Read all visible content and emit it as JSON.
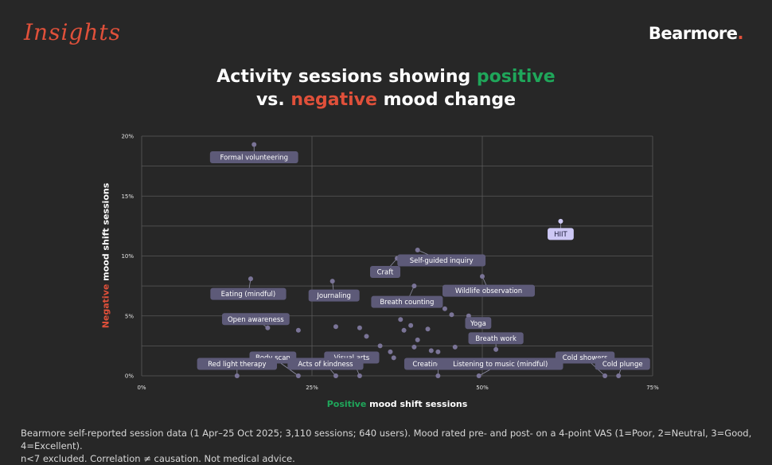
{
  "header": {
    "script_logo": "Insights",
    "brand": "Bearmore",
    "brand_dot": "."
  },
  "title": {
    "line1_prefix": "Activity sessions showing ",
    "positive_word": "positive",
    "line2_prefix": "vs. ",
    "negative_word": "negative",
    "line2_suffix": " mood change"
  },
  "axes": {
    "x_positive_word": "Positive",
    "x_suffix": " mood shift sessions",
    "y_negative_word": "Negative",
    "y_suffix": " mood shift sessions"
  },
  "footnote": {
    "line1": "Bearmore self-reported session data (1 Apr–25 Oct 2025; 3,110 sessions; 640 users). Mood rated pre- and post- on a 4-point VAS (1=Poor, 2=Neutral, 3=Good, 4=Excellent).",
    "line2": "n<7 excluded. Correlation ≠ causation. Not medical advice."
  },
  "colors": {
    "background": "#272727",
    "positive": "#1fa65a",
    "negative": "#e0503a",
    "point": "#7a7497",
    "label_bg": "#5d5a78",
    "highlight_label_bg": "#cdc8f5",
    "highlight_point": "#cdc8f5",
    "grid": "#5a5a5a"
  },
  "chart_data": {
    "type": "scatter",
    "xlim": [
      0,
      75
    ],
    "ylim": [
      0,
      20
    ],
    "x_ticks": [
      "0%",
      "25%",
      "50%",
      "75%"
    ],
    "y_ticks": [
      "0%",
      "5%",
      "10%",
      "15%",
      "20%"
    ],
    "grid": true,
    "labeled_points": [
      {
        "label": "Formal volunteering",
        "x": 16.5,
        "y": 19.3
      },
      {
        "label": "HIIT",
        "x": 61.5,
        "y": 12.9,
        "highlight": true
      },
      {
        "label": "Self-guided inquiry",
        "x": 40.5,
        "y": 10.5
      },
      {
        "label": "Craft",
        "x": 37.5,
        "y": 9.8
      },
      {
        "label": "Wildlife observation",
        "x": 50,
        "y": 8.3
      },
      {
        "label": "Eating (mindful)",
        "x": 16,
        "y": 8.1
      },
      {
        "label": "Journaling",
        "x": 28,
        "y": 7.9
      },
      {
        "label": "Breath counting",
        "x": 40,
        "y": 7.5
      },
      {
        "label": "Yoga",
        "x": 48,
        "y": 5
      },
      {
        "label": "Open awareness",
        "x": 18.5,
        "y": 4
      },
      {
        "label": "Breath work",
        "x": 52,
        "y": 2.2
      },
      {
        "label": "Body scan",
        "x": 23,
        "y": 0
      },
      {
        "label": "Visual arts",
        "x": 32,
        "y": 0
      },
      {
        "label": "Cold showers",
        "x": 68,
        "y": 0
      },
      {
        "label": "Red light therapy",
        "x": 14,
        "y": 0
      },
      {
        "label": "Acts of kindness",
        "x": 28.5,
        "y": 0
      },
      {
        "label": "Creating music",
        "x": 43.5,
        "y": 0
      },
      {
        "label": "Listening to music (mindful)",
        "x": 49.5,
        "y": 0
      },
      {
        "label": "Cold plunge",
        "x": 70,
        "y": 0
      }
    ],
    "unlabeled_points": [
      {
        "x": 23,
        "y": 3.8
      },
      {
        "x": 28.5,
        "y": 4.1
      },
      {
        "x": 32,
        "y": 4
      },
      {
        "x": 33,
        "y": 3.3
      },
      {
        "x": 34,
        "y": 1.4
      },
      {
        "x": 35,
        "y": 2.5
      },
      {
        "x": 36.5,
        "y": 2
      },
      {
        "x": 37,
        "y": 1.5
      },
      {
        "x": 38,
        "y": 4.7
      },
      {
        "x": 38.5,
        "y": 3.8
      },
      {
        "x": 39.5,
        "y": 4.2
      },
      {
        "x": 40,
        "y": 2.4
      },
      {
        "x": 40.5,
        "y": 3
      },
      {
        "x": 42,
        "y": 3.9
      },
      {
        "x": 42.5,
        "y": 2.1
      },
      {
        "x": 43.5,
        "y": 2
      },
      {
        "x": 44.5,
        "y": 5.6
      },
      {
        "x": 45.5,
        "y": 5.1
      },
      {
        "x": 46,
        "y": 2.4
      }
    ]
  }
}
